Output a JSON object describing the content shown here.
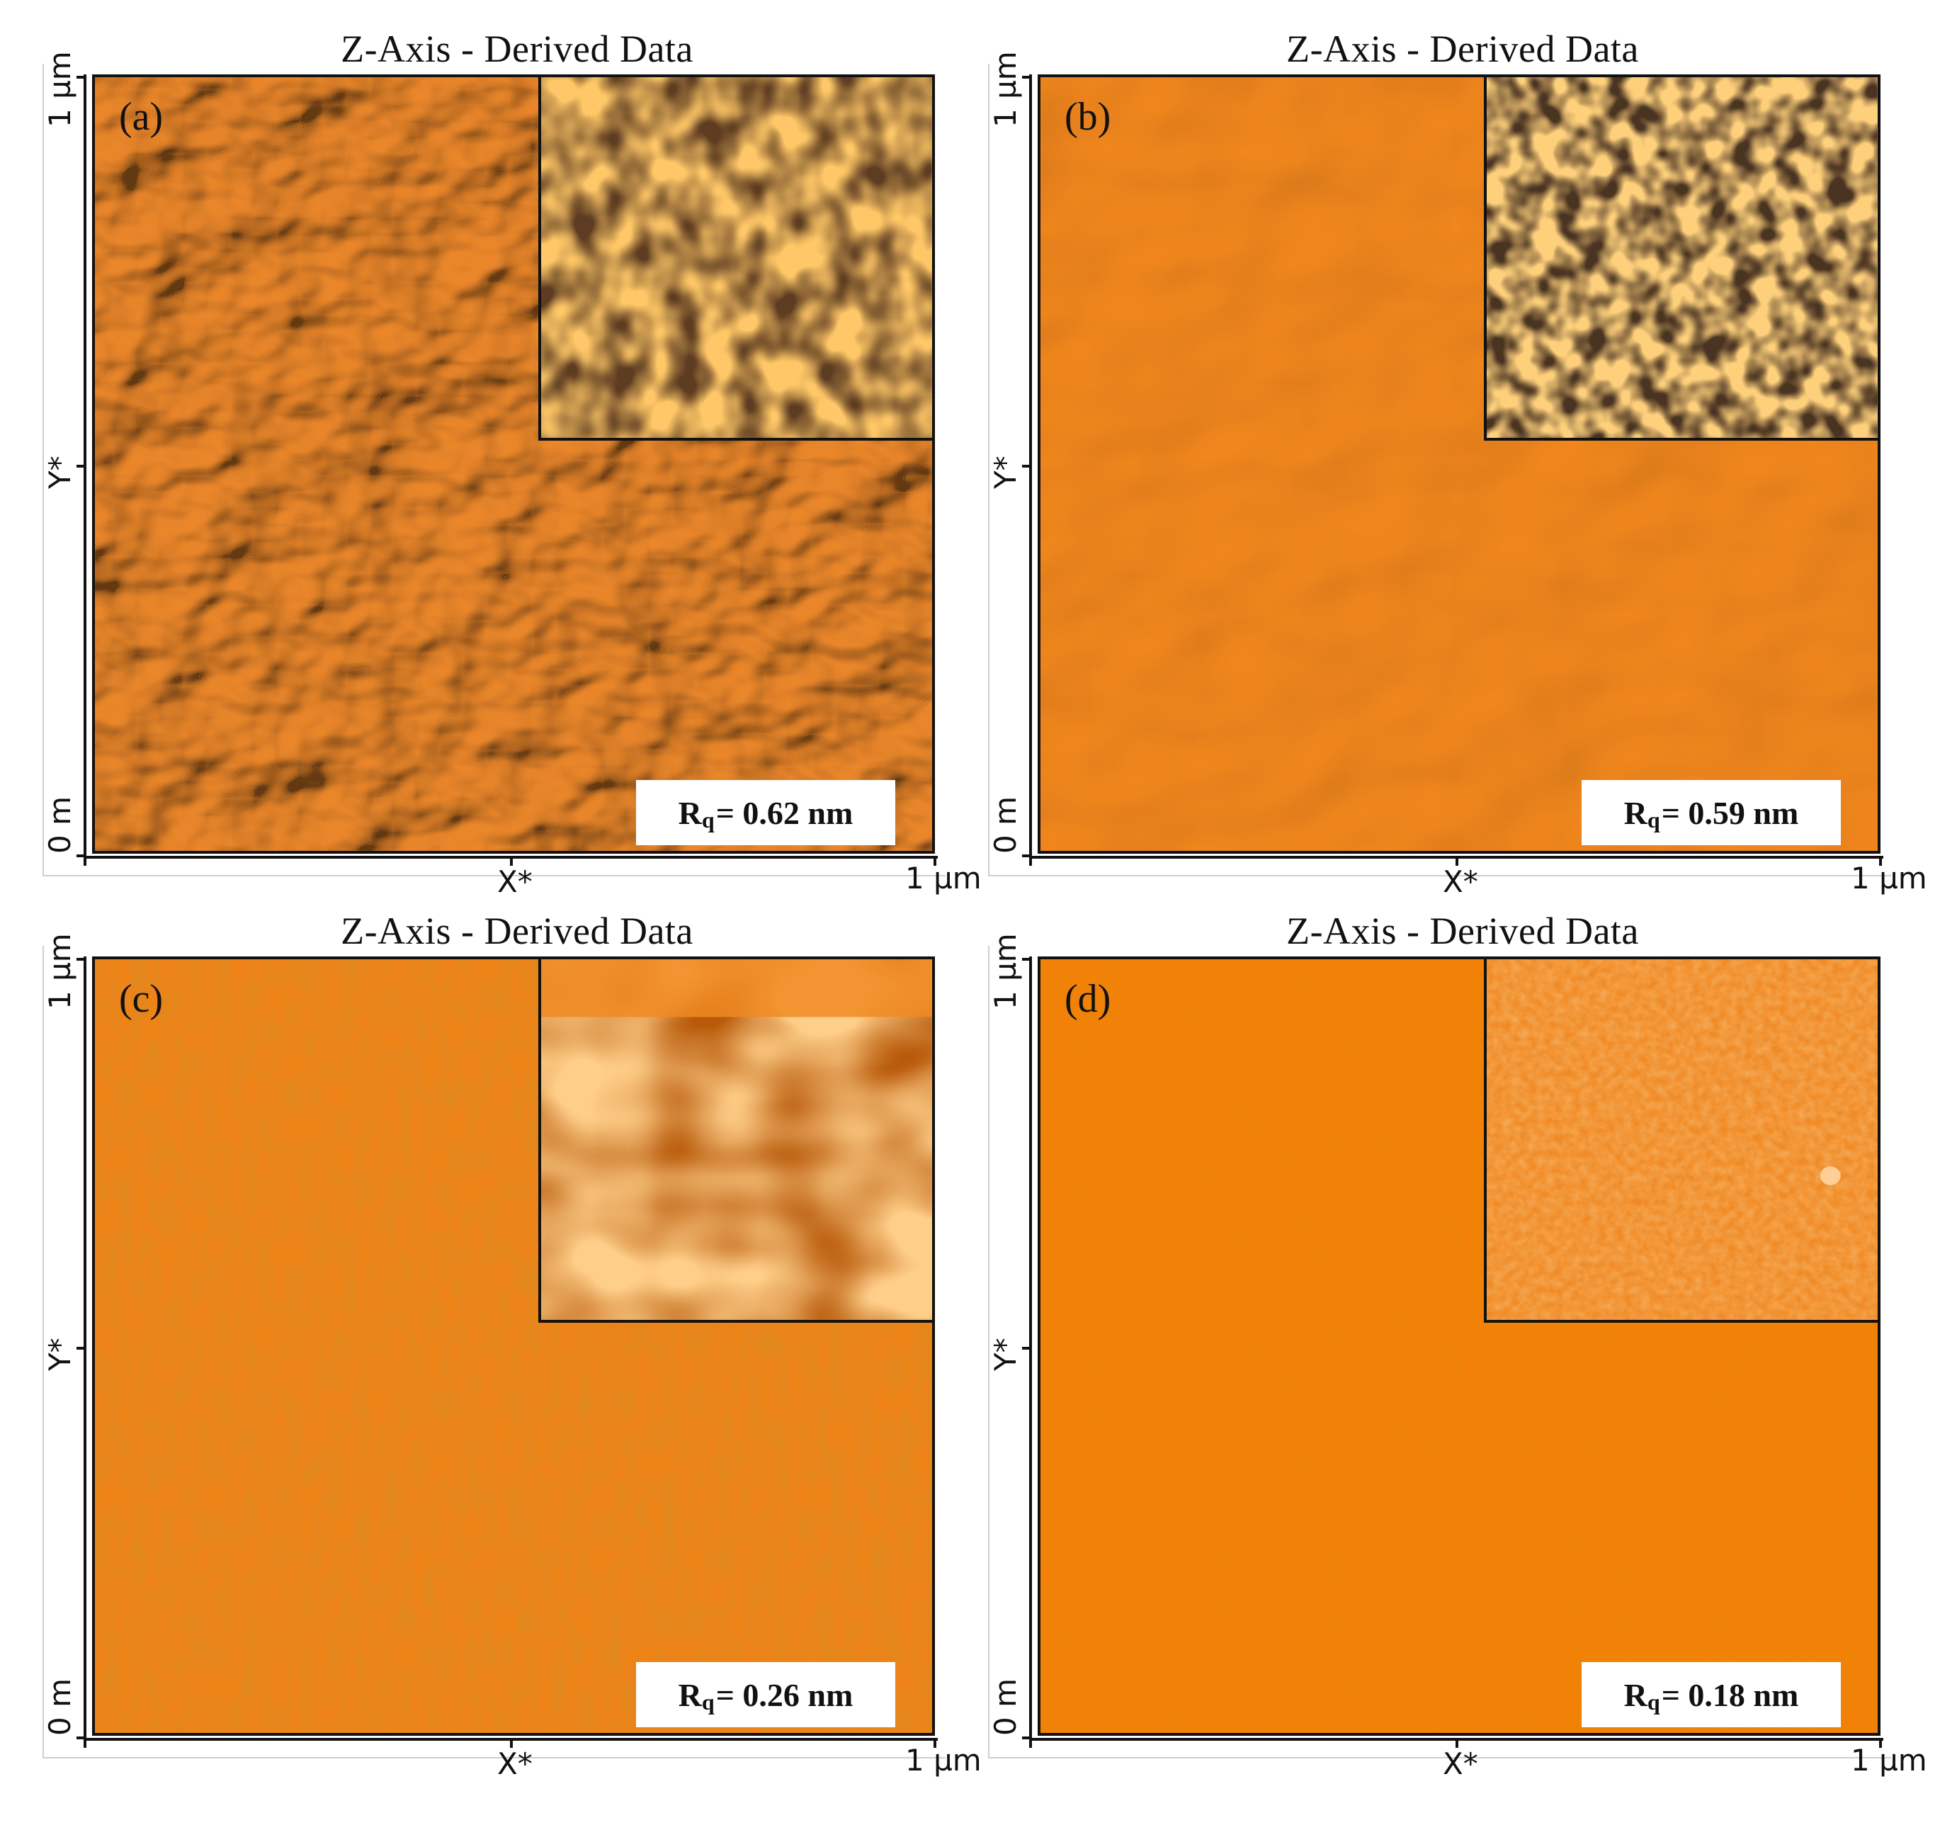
{
  "panels": [
    {
      "label": "(a)",
      "title": "Z-Axis - Derived Data",
      "rq_sub": "q",
      "rq_value": "= 0.62 nm",
      "y_top": "1 µm",
      "y_mid": "Y*",
      "y_bottom": "0 m",
      "x_mid": "X*",
      "x_right": "1 µm",
      "color": "#ee8a2c",
      "texture": "rough-grains"
    },
    {
      "label": "(b)",
      "title": "Z-Axis - Derived Data",
      "rq_sub": "q",
      "rq_value": "= 0.59 nm",
      "y_top": "1 µm",
      "y_mid": "Y*",
      "y_bottom": "0 m",
      "x_mid": "X*",
      "x_right": "1 µm",
      "color": "#f2861a",
      "texture": "shallow-grains"
    },
    {
      "label": "(c)",
      "title": "Z-Axis - Derived Data",
      "rq_sub": "q",
      "rq_value": "= 0.26 nm",
      "y_top": "1 µm",
      "y_mid": "Y*",
      "y_bottom": "0 m",
      "x_mid": "X*",
      "x_right": "1 µm",
      "color": "#ee8318",
      "texture": "smooth"
    },
    {
      "label": "(d)",
      "title": "Z-Axis - Derived Data",
      "rq_sub": "q",
      "rq_value": "= 0.18 nm",
      "y_top": "1 µm",
      "y_mid": "Y*",
      "y_bottom": "0 m",
      "x_mid": "X*",
      "x_right": "1 µm",
      "color": "#f48008",
      "texture": "flat"
    }
  ]
}
